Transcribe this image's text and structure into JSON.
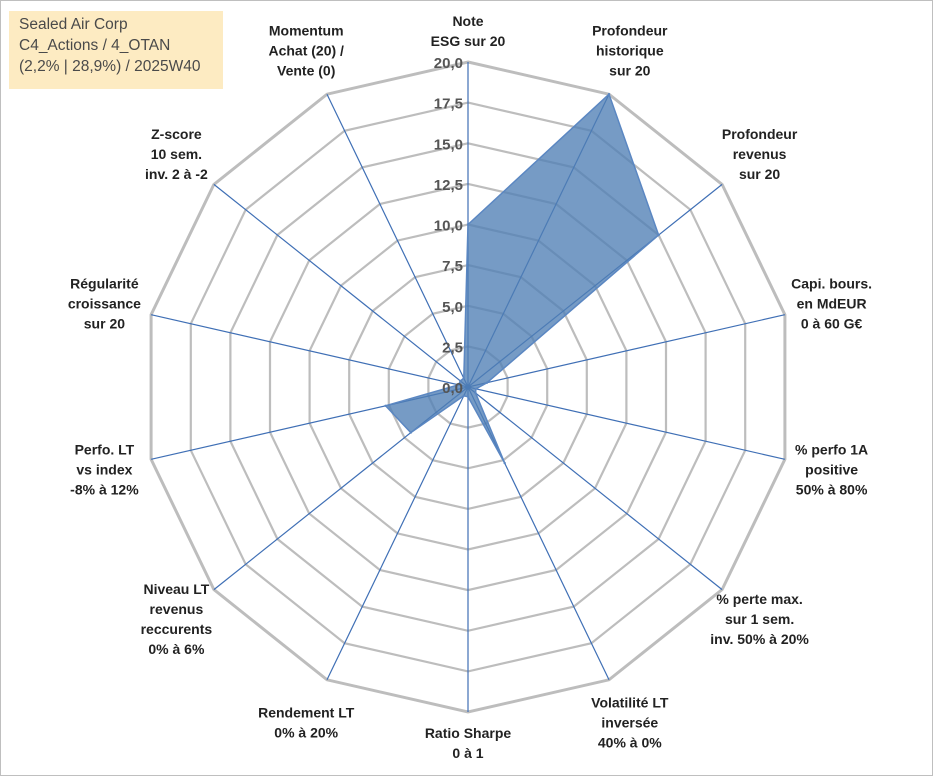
{
  "header": {
    "line1": "Sealed Air Corp",
    "line2": "C4_Actions / 4_OTAN",
    "line3": "(2,2% | 28,9%) / 2025W40"
  },
  "chart_data": {
    "type": "radar",
    "range": [
      0,
      20
    ],
    "grid": true,
    "ticks": [
      "0,0",
      "2,5",
      "5,0",
      "7,5",
      "10,0",
      "12,5",
      "15,0",
      "17,5",
      "20,0"
    ],
    "axes": [
      {
        "label": [
          "Note",
          "ESG sur 20"
        ],
        "value": 10.0
      },
      {
        "label": [
          "Profondeur",
          "historique",
          "sur 20"
        ],
        "value": 20.0
      },
      {
        "label": [
          "Profondeur",
          "revenus",
          "sur 20"
        ],
        "value": 15.0
      },
      {
        "label": [
          "Capi. bours.",
          "en MdEUR",
          "0 à 60 G€"
        ],
        "value": 1.0
      },
      {
        "label": [
          "% perfo 1A",
          "positive",
          "50% à 80%"
        ],
        "value": 0.5
      },
      {
        "label": [
          "% perte max.",
          "sur 1 sem.",
          "inv. 50% à 20%"
        ],
        "value": 0.5
      },
      {
        "label": [
          "Volatilité LT",
          "inversée",
          "40% à 0%"
        ],
        "value": 0.5
      },
      {
        "label": [
          "Ratio Sharpe",
          "0 à 1"
        ],
        "value": 0.5
      },
      {
        "label": [
          "Rendement LT",
          "0% à 20%"
        ],
        "value": 0.5
      },
      {
        "label": [
          "Niveau LT",
          "revenus",
          "reccurents",
          "0% à 6%"
        ],
        "value": 0.5
      },
      {
        "label": [
          "Perfo. LT",
          "vs index",
          "-8% à 12%"
        ],
        "value": 0.5
      },
      {
        "label": [
          "Régularité",
          "croissance",
          "sur 20"
        ],
        "value": 0.5
      },
      {
        "label": [
          "Z-score",
          "10 sem.",
          "inv. 2 à -2"
        ],
        "value": 0.5
      },
      {
        "label": [
          "Momentum",
          "Achat (20) /",
          "Vente (0)"
        ],
        "value": 0.5
      }
    ],
    "series": [
      {
        "values": [
          10.0,
          20.0,
          15.0,
          1.2,
          0.5,
          0.6,
          5.2,
          0.6,
          0.6,
          4.5,
          5.2,
          0.6,
          0.6,
          0.6
        ]
      }
    ],
    "colors": {
      "fill": "#4f7fb5",
      "stroke": "#5b87c2",
      "grid": "#bdbdbd",
      "spoke": "#3f6fb5"
    }
  }
}
